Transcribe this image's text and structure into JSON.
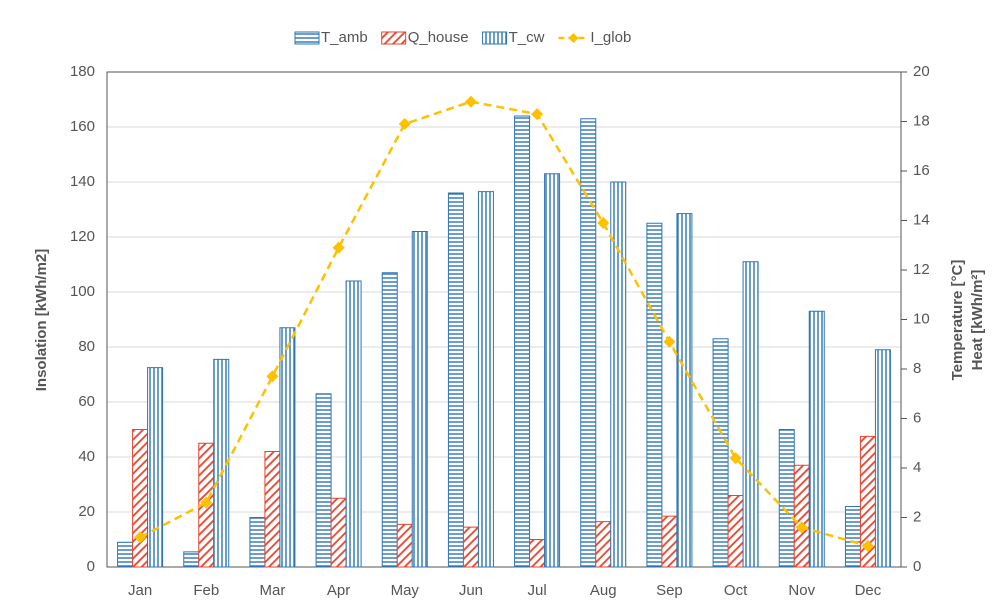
{
  "chart_data": {
    "type": "bar",
    "categories": [
      "Jan",
      "Feb",
      "Mar",
      "Apr",
      "May",
      "Jun",
      "Jul",
      "Aug",
      "Sep",
      "Oct",
      "Nov",
      "Dec"
    ],
    "y_label": "Insolation [kWh/m2]",
    "y2_label": [
      "Temperature [°C]",
      "Heat [kWh/m²]"
    ],
    "ylim": [
      0,
      180
    ],
    "yticks": [
      0,
      20,
      40,
      60,
      80,
      100,
      120,
      140,
      160,
      180
    ],
    "y2lim": [
      0,
      20
    ],
    "y2ticks": [
      0,
      2,
      4,
      6,
      8,
      10,
      12,
      14,
      16,
      18,
      20
    ],
    "grid": true,
    "legend": "top",
    "series": [
      {
        "name": "T_amb",
        "type": "bar",
        "pattern": "horizontal",
        "color": "#2e75b6",
        "values": [
          9,
          5.5,
          18,
          63,
          107,
          136,
          164,
          163,
          125,
          83,
          50,
          22
        ]
      },
      {
        "name": "Q_house",
        "type": "bar",
        "pattern": "diagonal",
        "color": "#e8442e",
        "values": [
          50,
          45,
          42,
          25,
          15.5,
          14.5,
          10,
          16.5,
          18.5,
          26,
          37,
          47.5
        ]
      },
      {
        "name": "T_cw",
        "type": "bar",
        "pattern": "vertical",
        "color": "#2e75b6",
        "values": [
          72.5,
          75.5,
          87,
          104,
          122,
          136.5,
          143,
          140,
          128.5,
          111,
          93,
          79
        ]
      },
      {
        "name": "I_glob",
        "type": "line",
        "axis": "y2",
        "color": "#ffc000",
        "values": [
          1.2,
          2.6,
          7.7,
          12.9,
          17.9,
          18.8,
          18.3,
          13.9,
          9.1,
          4.4,
          1.6,
          0.85
        ]
      }
    ]
  }
}
